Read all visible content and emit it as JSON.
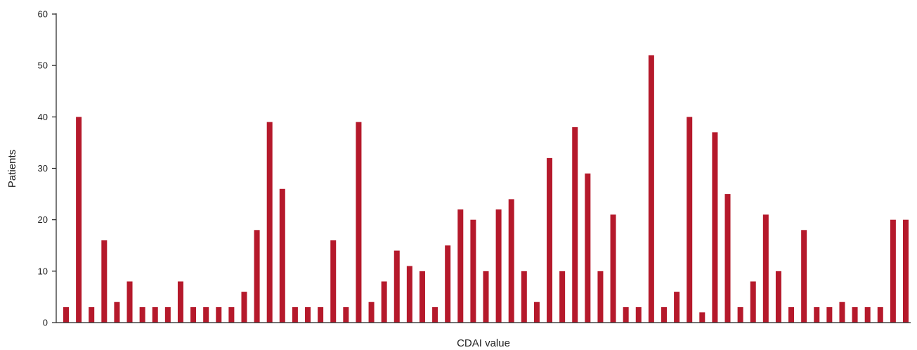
{
  "chart_data": {
    "type": "bar",
    "xlabel": "CDAI value",
    "ylabel": "Patients",
    "ylim": [
      0,
      60
    ],
    "yticks": [
      0,
      10,
      20,
      30,
      40,
      50,
      60
    ],
    "grid": false,
    "bar_color": "#b5192b",
    "values": [
      3,
      40,
      3,
      16,
      4,
      8,
      3,
      3,
      3,
      8,
      3,
      3,
      3,
      3,
      6,
      18,
      39,
      26,
      3,
      3,
      3,
      16,
      3,
      39,
      4,
      8,
      14,
      11,
      10,
      3,
      15,
      22,
      20,
      10,
      22,
      24,
      10,
      4,
      32,
      10,
      38,
      29,
      10,
      21,
      3,
      3,
      52,
      3,
      6,
      40,
      2,
      37,
      25,
      3,
      8,
      21,
      10,
      3,
      18,
      3,
      3,
      4,
      3,
      3,
      3,
      20,
      20
    ]
  }
}
